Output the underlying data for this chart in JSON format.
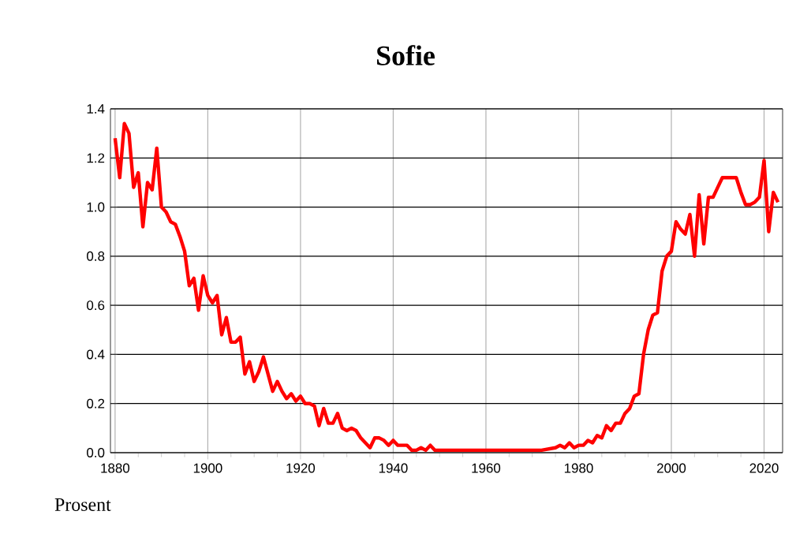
{
  "chart_data": {
    "type": "line",
    "title": "Sofie",
    "annotations": [
      "Prosent"
    ],
    "x": [
      1880,
      1881,
      1882,
      1883,
      1884,
      1885,
      1886,
      1887,
      1888,
      1889,
      1890,
      1891,
      1892,
      1893,
      1894,
      1895,
      1896,
      1897,
      1898,
      1899,
      1900,
      1901,
      1902,
      1903,
      1904,
      1905,
      1906,
      1907,
      1908,
      1909,
      1910,
      1911,
      1912,
      1913,
      1914,
      1915,
      1916,
      1917,
      1918,
      1919,
      1920,
      1921,
      1922,
      1923,
      1924,
      1925,
      1926,
      1927,
      1928,
      1929,
      1930,
      1931,
      1932,
      1933,
      1934,
      1935,
      1936,
      1937,
      1938,
      1939,
      1940,
      1941,
      1942,
      1943,
      1944,
      1945,
      1946,
      1947,
      1948,
      1949,
      1950,
      1960,
      1965,
      1970,
      1972,
      1975,
      1976,
      1977,
      1978,
      1979,
      1980,
      1981,
      1982,
      1983,
      1984,
      1985,
      1986,
      1987,
      1988,
      1989,
      1990,
      1991,
      1992,
      1993,
      1994,
      1995,
      1996,
      1997,
      1998,
      1999,
      2000,
      2001,
      2002,
      2003,
      2004,
      2005,
      2006,
      2007,
      2008,
      2009,
      2010,
      2011,
      2012,
      2013,
      2014,
      2015,
      2016,
      2017,
      2018,
      2019,
      2020,
      2021,
      2022,
      2023
    ],
    "series": [
      {
        "color": "#ff0000",
        "values": [
          1.28,
          1.12,
          1.34,
          1.3,
          1.08,
          1.14,
          0.92,
          1.1,
          1.07,
          1.24,
          1.0,
          0.98,
          0.94,
          0.93,
          0.88,
          0.82,
          0.68,
          0.71,
          0.58,
          0.72,
          0.64,
          0.61,
          0.64,
          0.48,
          0.55,
          0.45,
          0.45,
          0.47,
          0.32,
          0.37,
          0.29,
          0.33,
          0.39,
          0.32,
          0.25,
          0.29,
          0.25,
          0.22,
          0.24,
          0.21,
          0.23,
          0.2,
          0.2,
          0.19,
          0.11,
          0.18,
          0.12,
          0.12,
          0.16,
          0.1,
          0.09,
          0.1,
          0.09,
          0.06,
          0.04,
          0.02,
          0.06,
          0.06,
          0.05,
          0.03,
          0.05,
          0.03,
          0.03,
          0.03,
          0.01,
          0.01,
          0.02,
          0.01,
          0.03,
          0.01,
          0.01,
          0.01,
          0.01,
          0.01,
          0.01,
          0.02,
          0.03,
          0.02,
          0.04,
          0.02,
          0.03,
          0.03,
          0.05,
          0.04,
          0.07,
          0.06,
          0.11,
          0.09,
          0.12,
          0.12,
          0.16,
          0.18,
          0.23,
          0.24,
          0.4,
          0.5,
          0.56,
          0.57,
          0.74,
          0.8,
          0.82,
          0.94,
          0.91,
          0.89,
          0.97,
          0.8,
          1.05,
          0.85,
          1.04,
          1.04,
          1.08,
          1.12,
          1.12,
          1.12,
          1.12,
          1.06,
          1.01,
          1.01,
          1.02,
          1.04,
          1.19,
          0.9,
          1.06,
          1.02
        ]
      }
    ],
    "xlim": [
      1879,
      2024
    ],
    "ylim": [
      0,
      1.4
    ],
    "xticks": [
      1880,
      1900,
      1920,
      1940,
      1960,
      1980,
      2000,
      2020
    ],
    "yticks": [
      {
        "value": 0,
        "label": "0.0"
      },
      {
        "value": 0.2,
        "label": "0.2"
      },
      {
        "value": 0.4,
        "label": "0.4"
      },
      {
        "value": 0.6,
        "label": "0.6"
      },
      {
        "value": 0.8,
        "label": "0.8"
      },
      {
        "value": 1.0,
        "label": "1.0"
      },
      {
        "value": 1.2,
        "label": "1.2"
      },
      {
        "value": 1.4,
        "label": "1.4"
      }
    ],
    "grid": true,
    "marker": "none",
    "line_style": "solid"
  }
}
